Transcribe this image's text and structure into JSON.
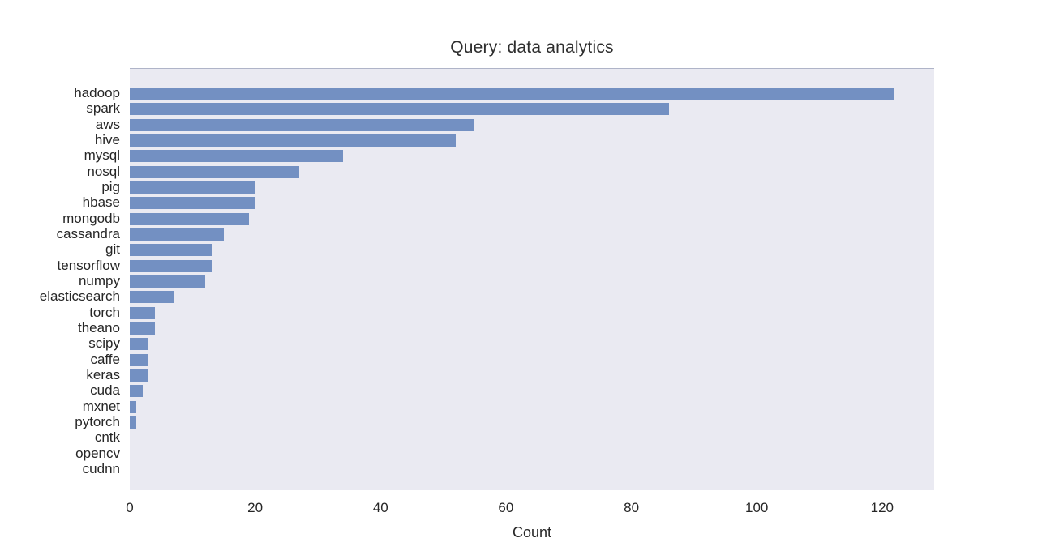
{
  "chart_data": {
    "type": "bar",
    "orientation": "horizontal",
    "title": "Query: data analytics",
    "xlabel": "Count",
    "ylabel": "",
    "categories": [
      "hadoop",
      "spark",
      "aws",
      "hive",
      "mysql",
      "nosql",
      "pig",
      "hbase",
      "mongodb",
      "cassandra",
      "git",
      "tensorflow",
      "numpy",
      "elasticsearch",
      "torch",
      "theano",
      "scipy",
      "caffe",
      "keras",
      "cuda",
      "mxnet",
      "pytorch",
      "cntk",
      "opencv",
      "cudnn"
    ],
    "values": [
      122,
      86,
      55,
      52,
      34,
      27,
      20,
      20,
      19,
      15,
      13,
      13,
      12,
      7,
      4,
      4,
      3,
      3,
      3,
      2,
      1,
      1,
      0,
      0,
      0
    ],
    "xticks": [
      0,
      20,
      40,
      60,
      80,
      100,
      120
    ],
    "xlim": [
      0,
      128.3
    ],
    "grid": false,
    "legend": null,
    "colors": {
      "bar": "#7390c2",
      "plot_bg": "#eaeaf2",
      "figure_bg": "#ffffff",
      "text": "#262626"
    }
  }
}
